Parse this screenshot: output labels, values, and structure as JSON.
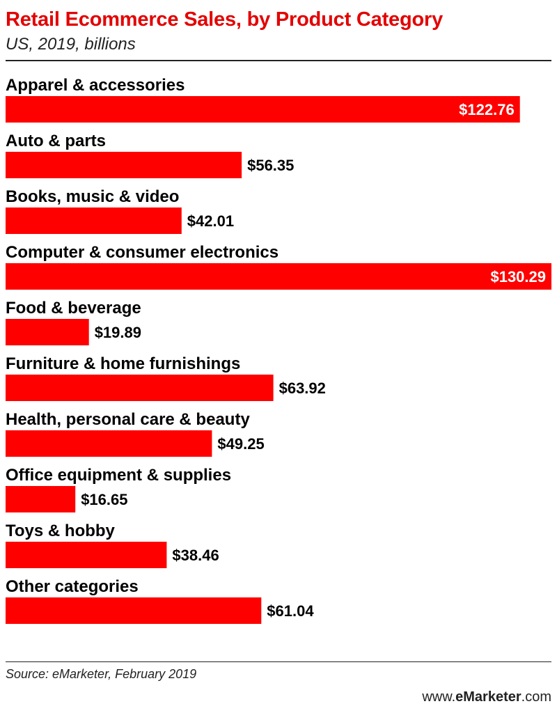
{
  "header": {
    "title": "Retail Ecommerce Sales, by Product Category",
    "subtitle": "US, 2019, billions"
  },
  "colors": {
    "bar": "#ff0000",
    "title": "#e30000",
    "value_inside": "#ffffff",
    "value_outside": "#000000"
  },
  "chart_data": {
    "type": "bar",
    "orientation": "horizontal",
    "categories": [
      "Apparel & accessories",
      "Auto & parts",
      "Books, music & video",
      "Computer & consumer electronics",
      "Food & beverage",
      "Furniture & home furnishings",
      "Health, personal care & beauty",
      "Office equipment & supplies",
      "Toys & hobby",
      "Other categories"
    ],
    "values": [
      122.76,
      56.35,
      42.01,
      130.29,
      19.89,
      63.92,
      49.25,
      16.65,
      38.46,
      61.04
    ],
    "value_labels": [
      "$122.76",
      "$56.35",
      "$42.01",
      "$130.29",
      "$19.89",
      "$63.92",
      "$49.25",
      "$16.65",
      "$38.46",
      "$61.04"
    ],
    "title": "Retail Ecommerce Sales, by Product Category",
    "subtitle": "US, 2019, billions",
    "xlim": [
      0,
      130.29
    ],
    "grid": false,
    "legend": "none"
  },
  "footer": {
    "source": "Source: eMarketer, February 2019",
    "brand_prefix": "www.",
    "brand_name": "eMarketer",
    "brand_suffix": ".com"
  }
}
